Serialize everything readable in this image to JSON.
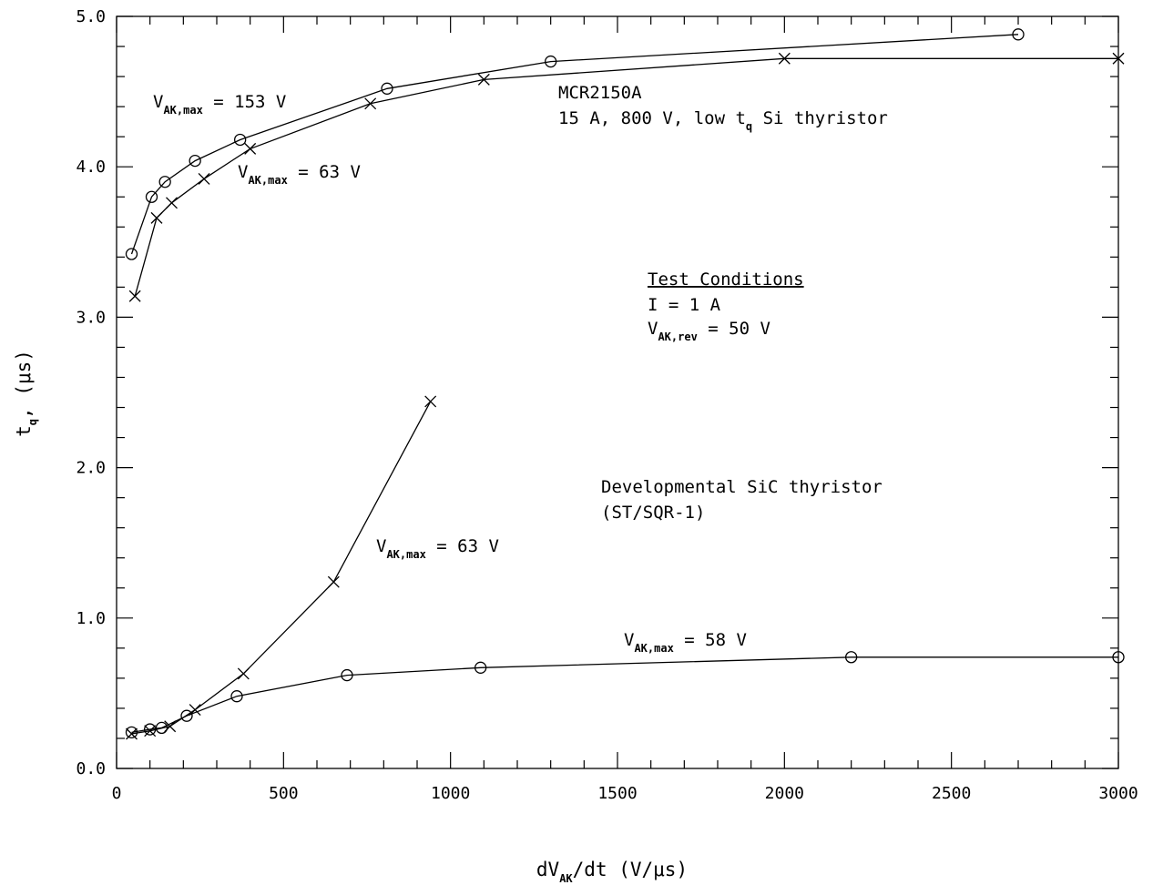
{
  "chart_data": {
    "type": "line",
    "xlabel": "dV_AK/dt (V/μs)",
    "ylabel": "t_q, (μs)",
    "xlim": [
      0,
      3000
    ],
    "ylim": [
      0.0,
      5.0
    ],
    "x_ticks": [
      "0",
      "500",
      "1000",
      "1500",
      "2000",
      "2500",
      "3000"
    ],
    "y_ticks": [
      "0.0",
      "1.0",
      "2.0",
      "3.0",
      "4.0",
      "5.0"
    ],
    "grid": false,
    "series": [
      {
        "name": "V_AK,max = 153 V",
        "device": "MCR2150A",
        "marker": "circle",
        "points": [
          [
            45,
            3.42
          ],
          [
            105,
            3.8
          ],
          [
            145,
            3.9
          ],
          [
            235,
            4.04
          ],
          [
            370,
            4.18
          ],
          [
            810,
            4.52
          ],
          [
            1300,
            4.7
          ],
          [
            2700,
            4.88
          ]
        ]
      },
      {
        "name": "V_AK,max = 63 V",
        "device": "MCR2150A",
        "marker": "x",
        "points": [
          [
            55,
            3.14
          ],
          [
            120,
            3.66
          ],
          [
            165,
            3.76
          ],
          [
            262,
            3.92
          ],
          [
            400,
            4.12
          ],
          [
            760,
            4.42
          ],
          [
            1100,
            4.58
          ],
          [
            2000,
            4.72
          ],
          [
            3000,
            4.72
          ]
        ]
      },
      {
        "name": "V_AK,max = 63 V",
        "device": "Developmental SiC thyristor",
        "marker": "x",
        "points": [
          [
            45,
            0.23
          ],
          [
            100,
            0.25
          ],
          [
            160,
            0.28
          ],
          [
            235,
            0.39
          ],
          [
            380,
            0.63
          ],
          [
            650,
            1.24
          ],
          [
            940,
            2.44
          ]
        ]
      },
      {
        "name": "V_AK,max = 58 V",
        "device": "Developmental SiC thyristor",
        "marker": "circle",
        "points": [
          [
            45,
            0.24
          ],
          [
            100,
            0.26
          ],
          [
            135,
            0.27
          ],
          [
            210,
            0.35
          ],
          [
            360,
            0.48
          ],
          [
            690,
            0.62
          ],
          [
            1090,
            0.67
          ],
          [
            2200,
            0.74
          ],
          [
            3000,
            0.74
          ]
        ]
      }
    ]
  },
  "annotations": {
    "label_153": {
      "main": "V",
      "sub": "AK,max",
      "tail": " = 153 V"
    },
    "label_63_top": {
      "main": "V",
      "sub": "AK,max",
      "tail": " = 63 V"
    },
    "label_63_bottom": {
      "main": "V",
      "sub": "AK,max",
      "tail": " = 63 V"
    },
    "label_58": {
      "main": "V",
      "sub": "AK,max",
      "tail": " = 58 V"
    },
    "mcr_name": "MCR2150A",
    "mcr_desc_pre": "15 A, 800 V, low t",
    "mcr_desc_sub": "q",
    "mcr_desc_post": " Si thyristor",
    "test_title": "Test Conditions",
    "test_current": "I = 1 A",
    "test_v": {
      "main": "V",
      "sub": "AK,rev",
      "tail": " = 50 V"
    },
    "sic_name": "Developmental SiC thyristor",
    "sic_id": "(ST/SQR-1)"
  },
  "axis_titles": {
    "x": {
      "pre": "dV",
      "sub": "AK",
      "post": "/dt (V/μs)"
    },
    "y": {
      "pre": "t",
      "sub": "q",
      "post": ", (μs)"
    }
  }
}
